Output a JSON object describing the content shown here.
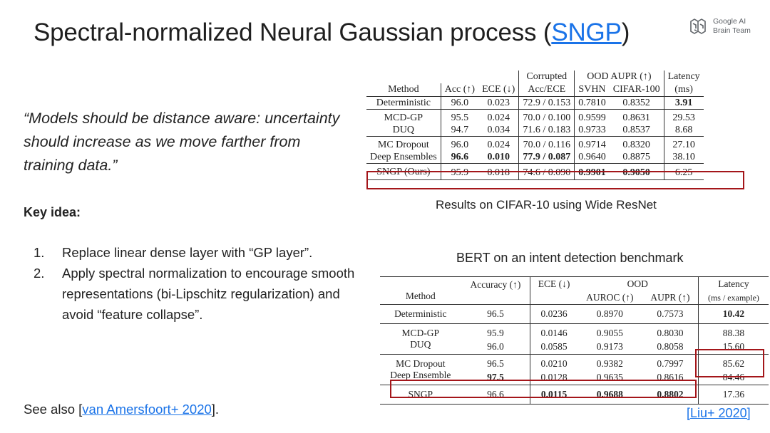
{
  "slide": {
    "title_prefix": "Spectral-normalized Neural Gaussian process (",
    "title_link": "SNGP",
    "title_suffix": ")",
    "logo_line1": "Google AI",
    "logo_line2": "Brain Team",
    "quote": "“Models should be distance aware: uncertainty should increase as we move farther from training data.”",
    "key_idea": "Key idea:",
    "list": [
      {
        "num": "1.",
        "text": "Replace linear dense layer with “GP layer”."
      },
      {
        "num": "2.",
        "text": "Apply spectral normalization to encourage smooth representations (bi-Lipschitz regularization) and avoid “feature collapse”."
      }
    ],
    "see_also_prefix": "See also [",
    "see_also_link": "van Amersfoort+ 2020",
    "see_also_suffix": "].",
    "ref_open": "[",
    "ref_link": "Liu+ 2020",
    "ref_close": "]"
  },
  "table1": {
    "caption": "Results on CIFAR-10 using Wide ResNet",
    "h_corrupted": "Corrupted",
    "h_ood": "OOD AUPR (↑)",
    "h_latency": "Latency",
    "h_method": "Method",
    "h_acc": "Acc (↑)",
    "h_ece": "ECE (↓)",
    "h_accece": "Acc/ECE",
    "h_svhn": "SVHN",
    "h_cifar100": "CIFAR-100",
    "h_ms": "(ms)",
    "rows": [
      [
        "Deterministic",
        "96.0",
        "0.023",
        "72.9 / 0.153",
        "0.7810",
        "0.8352",
        "3.91"
      ],
      [
        "MCD-GP",
        "95.5",
        "0.024",
        "70.0 / 0.100",
        "0.9599",
        "0.8631",
        "29.53"
      ],
      [
        "DUQ",
        "94.7",
        "0.034",
        "71.6 / 0.183",
        "0.9733",
        "0.8537",
        "8.68"
      ],
      [
        "MC Dropout",
        "96.0",
        "0.024",
        "70.0 / 0.116",
        "0.9714",
        "0.8320",
        "27.10"
      ],
      [
        "Deep Ensembles",
        "96.6",
        "0.010",
        "77.9 / 0.087",
        "0.9640",
        "0.8875",
        "38.10"
      ],
      [
        "SNGP (Ours)",
        "95.9",
        "0.018",
        "74.6 / 0.090",
        "0.9901",
        "0.9050",
        "6.25"
      ]
    ]
  },
  "table2": {
    "caption": "BERT on an intent detection benchmark",
    "h_accuracy": "Accuracy (↑)",
    "h_ece": "ECE (↓)",
    "h_ood": "OOD",
    "h_latency": "Latency",
    "h_method": "Method",
    "h_auroc": "AUROC (↑)",
    "h_aupr": "AUPR (↑)",
    "h_msex": "(ms / example)",
    "rows": [
      [
        "Deterministic",
        "96.5",
        "0.0236",
        "0.8970",
        "0.7573",
        "10.42"
      ],
      [
        "MCD-GP",
        "95.9",
        "0.0146",
        "0.9055",
        "0.8030",
        "88.38"
      ],
      [
        "DUQ",
        "96.0",
        "0.0585",
        "0.9173",
        "0.8058",
        "15.60"
      ],
      [
        "MC Dropout",
        "96.5",
        "0.0210",
        "0.9382",
        "0.7997",
        "85.62"
      ],
      [
        "Deep Ensemble",
        "97.5",
        "0.0128",
        "0.9635",
        "0.8616",
        "84.46"
      ],
      [
        "SNGP",
        "96.6",
        "0.0115",
        "0.9688",
        "0.8802",
        "17.36"
      ]
    ]
  },
  "colors": {
    "link": "#1a73e8",
    "highlight_box": "#a4161a"
  }
}
